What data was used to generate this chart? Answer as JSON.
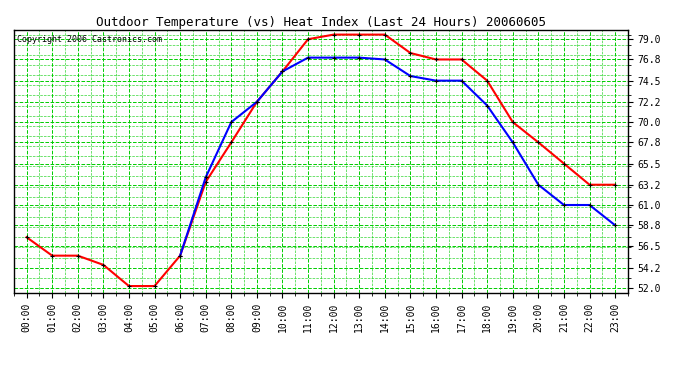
{
  "title": "Outdoor Temperature (vs) Heat Index (Last 24 Hours) 20060605",
  "copyright": "Copyright 2006 Castronics.com",
  "background_color": "#ffffff",
  "plot_background": "#ffffff",
  "grid_color_major": "#00cc00",
  "grid_color_minor": "#00cc00",
  "hours": [
    0,
    1,
    2,
    3,
    4,
    5,
    6,
    7,
    8,
    9,
    10,
    11,
    12,
    13,
    14,
    15,
    16,
    17,
    18,
    19,
    20,
    21,
    22,
    23
  ],
  "temp_red": [
    57.5,
    55.5,
    55.5,
    54.5,
    52.2,
    52.2,
    55.5,
    63.5,
    67.8,
    72.2,
    75.5,
    79.0,
    79.5,
    79.5,
    79.5,
    77.5,
    76.8,
    76.8,
    74.5,
    70.0,
    67.8,
    65.5,
    63.2,
    63.2
  ],
  "heat_blue": [
    null,
    null,
    null,
    null,
    null,
    null,
    55.5,
    64.0,
    70.0,
    72.2,
    75.5,
    77.0,
    77.0,
    77.0,
    76.8,
    75.0,
    74.5,
    74.5,
    71.8,
    67.8,
    63.2,
    61.0,
    61.0,
    58.8
  ],
  "yticks": [
    52.0,
    54.2,
    56.5,
    58.8,
    61.0,
    63.2,
    65.5,
    67.8,
    70.0,
    72.2,
    74.5,
    76.8,
    79.0
  ],
  "ylim": [
    51.5,
    80.0
  ],
  "red_color": "#ff0000",
  "blue_color": "#0000ff",
  "marker_color": "#000000",
  "marker_size": 3,
  "line_width": 1.5,
  "title_fontsize": 9,
  "tick_fontsize": 7,
  "copyright_fontsize": 6
}
